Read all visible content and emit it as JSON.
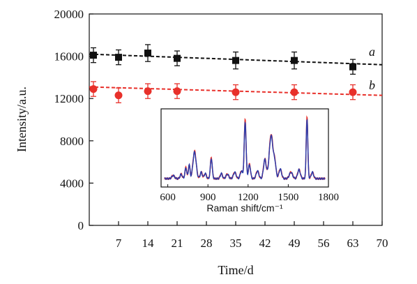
{
  "chart_data": {
    "type": "scatter",
    "xlabel": "Time/d",
    "ylabel": "Intensity/a.u.",
    "xlim": [
      0,
      70
    ],
    "ylim": [
      0,
      20000
    ],
    "xticks": [
      "7",
      "14",
      "21",
      "28",
      "35",
      "42",
      "49",
      "56",
      "63",
      "70"
    ],
    "yticks": [
      "0",
      "4000",
      "8000",
      "12000",
      "16000",
      "20000"
    ],
    "series": [
      {
        "name": "a",
        "color": "#111111",
        "marker": "square",
        "x": [
          1,
          7,
          14,
          21,
          35,
          49,
          63
        ],
        "y": [
          16100,
          15900,
          16300,
          15800,
          15600,
          15600,
          15000
        ],
        "error": [
          700,
          700,
          800,
          700,
          800,
          800,
          700
        ],
        "trend": {
          "x": [
            0,
            70
          ],
          "y": [
            16200,
            15200
          ]
        }
      },
      {
        "name": "b",
        "color": "#e8302a",
        "marker": "circle",
        "x": [
          1,
          7,
          14,
          21,
          35,
          49,
          63
        ],
        "y": [
          12900,
          12300,
          12700,
          12700,
          12600,
          12600,
          12600
        ],
        "error": [
          700,
          700,
          700,
          700,
          700,
          700,
          700
        ],
        "trend": {
          "x": [
            0,
            70
          ],
          "y": [
            13100,
            12300
          ]
        }
      }
    ],
    "inset": {
      "type": "line",
      "xlabel": "Raman shift/cm⁻¹",
      "xlim": [
        550,
        1800
      ],
      "xticks": [
        "600",
        "900",
        "1200",
        "1500",
        "1800"
      ],
      "colors": [
        "#e8302a",
        "#2b3aa8"
      ],
      "peaks": [
        {
          "center": 640,
          "width": 10,
          "height": 0.05
        },
        {
          "center": 700,
          "width": 8,
          "height": 0.07
        },
        {
          "center": 735,
          "width": 7,
          "height": 0.17
        },
        {
          "center": 760,
          "width": 6,
          "height": 0.22
        },
        {
          "center": 800,
          "width": 12,
          "height": 0.42
        },
        {
          "center": 850,
          "width": 8,
          "height": 0.1
        },
        {
          "center": 880,
          "width": 8,
          "height": 0.08
        },
        {
          "center": 925,
          "width": 7,
          "height": 0.32
        },
        {
          "center": 1000,
          "width": 8,
          "height": 0.08
        },
        {
          "center": 1045,
          "width": 10,
          "height": 0.07
        },
        {
          "center": 1100,
          "width": 10,
          "height": 0.1
        },
        {
          "center": 1150,
          "width": 9,
          "height": 0.12
        },
        {
          "center": 1178,
          "width": 7,
          "height": 0.9
        },
        {
          "center": 1210,
          "width": 8,
          "height": 0.22
        },
        {
          "center": 1270,
          "width": 10,
          "height": 0.12
        },
        {
          "center": 1325,
          "width": 10,
          "height": 0.3
        },
        {
          "center": 1372,
          "width": 14,
          "height": 0.68
        },
        {
          "center": 1400,
          "width": 9,
          "height": 0.22
        },
        {
          "center": 1440,
          "width": 10,
          "height": 0.15
        },
        {
          "center": 1520,
          "width": 12,
          "height": 0.1
        },
        {
          "center": 1580,
          "width": 10,
          "height": 0.14
        },
        {
          "center": 1640,
          "width": 6,
          "height": 0.95
        },
        {
          "center": 1680,
          "width": 9,
          "height": 0.1
        }
      ]
    }
  }
}
